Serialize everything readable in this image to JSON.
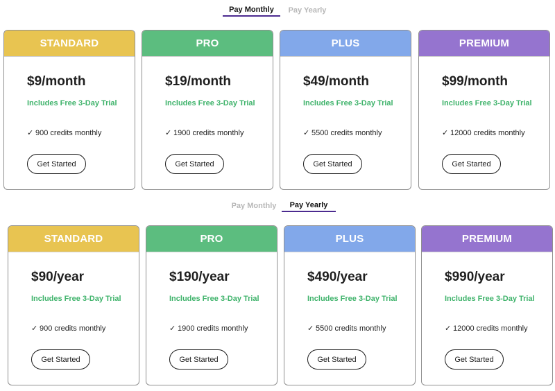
{
  "colors": {
    "standard": "#e8c451",
    "pro": "#5cbd7f",
    "plus": "#82a8ea",
    "premium": "#9574cf",
    "trial_text": "#3fb36b",
    "active_tab_underline": "#4b2a8f"
  },
  "monthly_section": {
    "tabs": {
      "monthly": "Pay Monthly",
      "yearly": "Pay Yearly",
      "active": "monthly"
    },
    "cards": [
      {
        "name": "STANDARD",
        "price": "$9/month",
        "trial": "Includes Free 3-Day Trial",
        "check": "✓",
        "credits": "900 credits monthly",
        "button": "Get Started"
      },
      {
        "name": "PRO",
        "price": "$19/month",
        "trial": "Includes Free 3-Day Trial",
        "check": "✓",
        "credits": "1900 credits monthly",
        "button": "Get Started"
      },
      {
        "name": "PLUS",
        "price": "$49/month",
        "trial": "Includes Free 3-Day Trial",
        "check": "✓",
        "credits": "5500 credits monthly",
        "button": "Get Started"
      },
      {
        "name": "PREMIUM",
        "price": "$99/month",
        "trial": "Includes Free 3-Day Trial",
        "check": "✓",
        "credits": "12000 credits monthly",
        "button": "Get Started"
      }
    ]
  },
  "yearly_section": {
    "tabs": {
      "monthly": "Pay Monthly",
      "yearly": "Pay Yearly",
      "active": "yearly"
    },
    "cards": [
      {
        "name": "STANDARD",
        "price": "$90/year",
        "trial": "Includes Free 3-Day Trial",
        "check": "✓",
        "credits": "900 credits monthly",
        "button": "Get Started"
      },
      {
        "name": "PRO",
        "price": "$190/year",
        "trial": "Includes Free 3-Day Trial",
        "check": "✓",
        "credits": "1900 credits monthly",
        "button": "Get Started"
      },
      {
        "name": "PLUS",
        "price": "$490/year",
        "trial": "Includes Free 3-Day Trial",
        "check": "✓",
        "credits": "5500 credits monthly",
        "button": "Get Started"
      },
      {
        "name": "PREMIUM",
        "price": "$990/year",
        "trial": "Includes Free 3-Day Trial",
        "check": "✓",
        "credits": "12000 credits monthly",
        "button": "Get Started"
      }
    ]
  }
}
